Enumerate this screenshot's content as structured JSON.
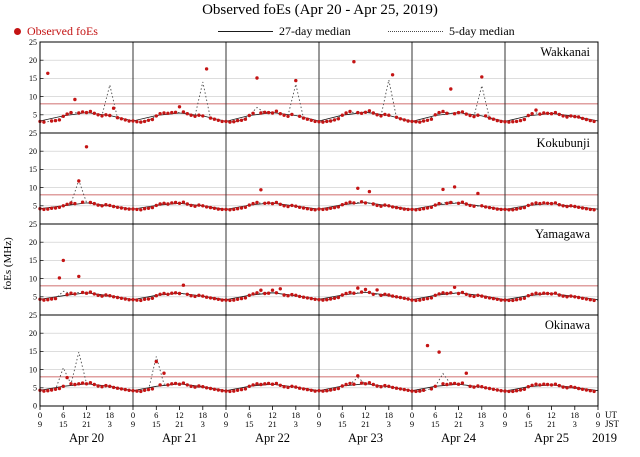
{
  "chart_data": {
    "type": "scatter",
    "title": "Observed foEs (Apr 20 - Apr 25, 2019)",
    "ylabel": "foEs (MHz)",
    "legend": {
      "observed": "Observed foEs",
      "median27": "27-day median",
      "median5": "5-day median"
    },
    "y_max": 25,
    "y_tick_values": [
      25,
      20,
      15,
      10,
      5
    ],
    "y_bottom_label": "0",
    "y_gridlines": [
      5,
      10,
      15,
      20
    ],
    "threshold_mhz": 8,
    "hours_total": 144,
    "tick_step_hours": 6,
    "scatter_step_hours": 1,
    "median5_step_hours": 2,
    "median27_step_hours": 6,
    "colors": {
      "observed": "#c41414",
      "median27": "#1a1a1a",
      "median5": "#4a4a4a",
      "threshold": "#c04040",
      "grid": "#c9c9c9",
      "frame": "#000000",
      "dayline": "#333333"
    },
    "x_axis": {
      "ut_cycle": [
        "0",
        "6",
        "12",
        "18"
      ],
      "jst_cycle": [
        "9",
        "15",
        "21",
        "3"
      ],
      "ut_unit": "UT",
      "jst_unit": "JST",
      "day_labels": [
        "Apr 20",
        "Apr 21",
        "Apr 22",
        "Apr 23",
        "Apr 24",
        "Apr 25"
      ],
      "year": "2019"
    },
    "stations": [
      {
        "name": "Wakkanai",
        "scatter": [
          3.2,
          3.0,
          16.4,
          3.3,
          3.4,
          3.6,
          4.6,
          5.2,
          5.6,
          9.2,
          5.5,
          5.8,
          5.6,
          5.9,
          5.4,
          5.0,
          4.7,
          5.0,
          4.8,
          6.8,
          4.2,
          3.9,
          3.6,
          3.3,
          3.3,
          3.1,
          3.0,
          3.2,
          3.5,
          3.7,
          4.7,
          5.3,
          5.5,
          5.4,
          5.6,
          5.7,
          7.2,
          5.8,
          5.3,
          4.9,
          4.6,
          4.9,
          4.7,
          17.6,
          4.1,
          3.8,
          3.5,
          3.2,
          3.2,
          3.0,
          3.1,
          3.4,
          3.5,
          3.8,
          4.8,
          5.4,
          15.1,
          5.5,
          5.7,
          5.6,
          5.5,
          6.0,
          5.3,
          4.9,
          4.6,
          5.1,
          14.4,
          4.6,
          4.1,
          3.8,
          3.5,
          3.2,
          3.1,
          3.0,
          3.2,
          3.3,
          3.6,
          3.9,
          4.9,
          5.5,
          5.9,
          19.6,
          5.6,
          5.4,
          5.7,
          6.1,
          5.5,
          5.0,
          4.7,
          5.1,
          4.9,
          16.0,
          4.3,
          3.9,
          3.6,
          3.3,
          3.2,
          3.1,
          3.0,
          3.3,
          3.5,
          3.8,
          5.0,
          5.6,
          5.9,
          5.4,
          12.1,
          5.3,
          5.6,
          5.8,
          5.2,
          4.8,
          4.5,
          4.9,
          15.4,
          4.7,
          4.1,
          3.8,
          3.4,
          3.2,
          3.1,
          3.0,
          3.1,
          3.2,
          3.4,
          3.7,
          4.8,
          5.3,
          6.3,
          5.2,
          5.5,
          5.4,
          5.3,
          5.6,
          5.1,
          4.7,
          4.4,
          4.7,
          4.5,
          4.4,
          4.0,
          3.7,
          3.4,
          3.2
        ],
        "median5": [
          3.2,
          3.1,
          3.4,
          4.6,
          5.5,
          5.6,
          5.7,
          5.5,
          4.8,
          13.2,
          4.1,
          3.6,
          3.2,
          3.0,
          3.5,
          4.7,
          5.4,
          5.7,
          5.6,
          5.4,
          4.7,
          14.0,
          4.0,
          3.5,
          3.1,
          3.1,
          3.5,
          4.8,
          7.0,
          5.6,
          5.7,
          5.3,
          4.8,
          13.4,
          4.1,
          3.6,
          3.1,
          3.2,
          3.6,
          4.9,
          5.8,
          5.5,
          5.8,
          5.4,
          4.7,
          14.6,
          4.2,
          3.6,
          3.2,
          3.1,
          3.5,
          5.0,
          5.7,
          5.4,
          5.6,
          5.2,
          4.6,
          13.0,
          4.0,
          3.5,
          3.1,
          3.0,
          3.4,
          4.8,
          5.5,
          5.3,
          5.4,
          5.0,
          4.5,
          4.6,
          3.9,
          3.4,
          3.2
        ],
        "median27": [
          3.3,
          4.7,
          5.6,
          4.8,
          3.3,
          4.8,
          5.5,
          4.7,
          3.2,
          4.8,
          5.6,
          4.8,
          3.3,
          4.9,
          5.7,
          4.8,
          3.2,
          4.8,
          5.6,
          4.7,
          3.2,
          4.7,
          5.4,
          4.6,
          3.3
        ]
      },
      {
        "name": "Kokubunji",
        "scatter": [
          4.2,
          4.0,
          4.1,
          4.3,
          4.4,
          4.6,
          5.0,
          5.4,
          5.8,
          5.6,
          11.8,
          6.0,
          21.2,
          5.9,
          5.6,
          5.2,
          5.0,
          5.3,
          5.1,
          4.8,
          4.6,
          4.4,
          4.2,
          4.1,
          4.1,
          4.0,
          3.9,
          4.2,
          4.3,
          4.5,
          5.1,
          5.5,
          5.7,
          5.5,
          5.8,
          5.9,
          5.7,
          6.0,
          5.5,
          5.1,
          4.9,
          5.2,
          5.0,
          4.7,
          4.5,
          4.3,
          4.1,
          4.0,
          4.0,
          3.9,
          4.0,
          4.2,
          4.4,
          4.6,
          5.2,
          5.6,
          5.9,
          9.4,
          5.7,
          5.8,
          5.6,
          5.9,
          5.4,
          5.0,
          4.8,
          5.1,
          4.9,
          4.6,
          4.4,
          4.2,
          4.0,
          3.9,
          4.1,
          4.0,
          4.1,
          4.3,
          4.5,
          4.7,
          5.3,
          5.7,
          6.0,
          5.8,
          9.8,
          6.1,
          5.8,
          8.9,
          5.5,
          5.1,
          4.9,
          5.2,
          5.0,
          4.7,
          4.5,
          4.3,
          4.1,
          4.0,
          4.0,
          3.9,
          4.0,
          4.2,
          4.4,
          4.6,
          5.2,
          5.6,
          9.5,
          5.7,
          5.9,
          10.2,
          5.7,
          6.0,
          5.5,
          5.1,
          4.9,
          8.4,
          5.0,
          4.7,
          4.5,
          4.3,
          4.1,
          4.0,
          4.0,
          3.9,
          3.9,
          4.1,
          4.3,
          4.5,
          5.1,
          5.5,
          5.8,
          5.6,
          5.8,
          5.7,
          5.6,
          5.8,
          5.3,
          5.0,
          4.8,
          5.0,
          4.8,
          4.6,
          4.4,
          4.2,
          4.0,
          3.9
        ],
        "median5": [
          4.1,
          4.0,
          4.4,
          5.0,
          5.7,
          12.0,
          5.9,
          5.6,
          5.0,
          5.0,
          4.6,
          4.2,
          4.1,
          4.0,
          4.3,
          5.1,
          5.7,
          5.7,
          5.8,
          5.5,
          4.9,
          5.0,
          4.5,
          4.1,
          4.0,
          4.0,
          4.4,
          5.2,
          5.8,
          5.7,
          5.7,
          5.4,
          4.9,
          4.9,
          4.4,
          4.1,
          4.1,
          4.1,
          4.5,
          5.3,
          5.9,
          5.9,
          5.8,
          5.5,
          5.0,
          5.0,
          4.5,
          4.1,
          4.0,
          4.0,
          4.4,
          5.2,
          5.8,
          6.1,
          5.7,
          5.5,
          4.9,
          4.9,
          4.4,
          4.1,
          4.0,
          3.9,
          4.3,
          5.1,
          5.6,
          5.7,
          5.6,
          5.3,
          4.8,
          4.8,
          4.4,
          4.0,
          4.0
        ],
        "median27": [
          4.2,
          5.0,
          5.8,
          5.0,
          4.1,
          5.1,
          5.7,
          5.0,
          4.0,
          5.2,
          5.8,
          4.9,
          4.1,
          5.3,
          5.9,
          5.0,
          4.0,
          5.2,
          5.8,
          4.9,
          4.0,
          5.1,
          5.6,
          4.8,
          4.1
        ]
      },
      {
        "name": "Yamagawa",
        "scatter": [
          4.3,
          4.1,
          4.2,
          4.4,
          4.5,
          10.2,
          15.0,
          5.6,
          6.0,
          5.8,
          10.6,
          6.2,
          6.0,
          6.3,
          5.8,
          5.4,
          5.2,
          5.5,
          5.3,
          5.0,
          4.8,
          4.6,
          4.4,
          4.2,
          4.2,
          4.1,
          4.0,
          4.3,
          4.4,
          4.6,
          5.3,
          5.7,
          5.9,
          5.7,
          6.0,
          6.1,
          5.9,
          8.2,
          5.7,
          5.3,
          5.1,
          5.4,
          5.2,
          4.9,
          4.7,
          4.5,
          4.3,
          4.1,
          4.1,
          4.0,
          4.1,
          4.3,
          4.5,
          4.7,
          5.4,
          5.8,
          6.1,
          6.8,
          5.9,
          6.0,
          6.8,
          6.1,
          7.2,
          5.5,
          5.3,
          5.6,
          5.4,
          5.1,
          4.9,
          4.7,
          4.5,
          4.3,
          4.2,
          4.1,
          4.2,
          4.4,
          4.6,
          4.8,
          5.5,
          5.9,
          6.2,
          6.0,
          7.4,
          6.3,
          7.0,
          6.2,
          5.7,
          6.9,
          5.4,
          5.7,
          5.5,
          5.2,
          5.0,
          4.8,
          4.6,
          4.4,
          4.1,
          4.0,
          4.1,
          4.3,
          4.5,
          4.7,
          5.4,
          5.8,
          6.1,
          5.9,
          6.1,
          7.6,
          5.9,
          6.2,
          5.7,
          5.3,
          5.1,
          5.4,
          5.2,
          4.9,
          4.7,
          4.5,
          4.3,
          4.1,
          4.1,
          4.0,
          4.0,
          4.2,
          4.4,
          4.6,
          5.3,
          5.7,
          6.0,
          5.8,
          6.0,
          5.9,
          5.8,
          6.0,
          5.5,
          5.2,
          5.0,
          5.2,
          5.0,
          4.8,
          4.6,
          4.4,
          4.2,
          4.0
        ],
        "median5": [
          4.2,
          4.1,
          4.5,
          6.5,
          5.9,
          6.2,
          6.1,
          5.8,
          5.2,
          5.2,
          4.8,
          4.4,
          4.2,
          4.1,
          4.4,
          5.3,
          5.8,
          5.9,
          6.0,
          5.7,
          5.1,
          5.1,
          4.7,
          4.3,
          4.1,
          4.1,
          4.5,
          5.4,
          6.0,
          6.0,
          6.2,
          5.9,
          5.3,
          5.2,
          4.8,
          4.4,
          4.2,
          4.2,
          4.6,
          5.5,
          6.1,
          6.1,
          6.3,
          5.8,
          5.4,
          5.3,
          4.9,
          4.5,
          4.1,
          4.1,
          4.5,
          5.4,
          6.0,
          6.0,
          6.1,
          5.7,
          5.2,
          5.2,
          4.8,
          4.4,
          4.1,
          4.0,
          4.4,
          5.3,
          5.8,
          5.9,
          5.9,
          5.6,
          5.1,
          5.0,
          4.7,
          4.3,
          4.1
        ],
        "median27": [
          4.3,
          5.3,
          6.1,
          5.3,
          4.2,
          5.4,
          6.0,
          5.2,
          4.2,
          5.4,
          6.1,
          5.3,
          4.3,
          5.5,
          6.2,
          5.4,
          4.2,
          5.4,
          6.1,
          5.3,
          4.2,
          5.3,
          5.9,
          5.1,
          4.2
        ]
      },
      {
        "name": "Okinawa",
        "scatter": [
          4.3,
          4.1,
          4.2,
          4.4,
          4.6,
          4.8,
          5.4,
          7.8,
          6.1,
          5.9,
          6.1,
          6.3,
          6.1,
          6.4,
          5.9,
          5.5,
          5.3,
          5.6,
          5.4,
          5.1,
          4.9,
          4.7,
          4.5,
          4.3,
          4.2,
          4.1,
          4.0,
          4.3,
          4.5,
          4.7,
          12.2,
          5.8,
          9.0,
          5.8,
          6.1,
          6.2,
          6.0,
          6.3,
          5.8,
          5.4,
          5.2,
          5.5,
          5.3,
          5.0,
          4.8,
          4.6,
          4.4,
          4.2,
          4.1,
          4.0,
          4.1,
          4.3,
          4.5,
          4.7,
          5.4,
          5.8,
          6.1,
          5.9,
          6.1,
          6.2,
          6.0,
          6.2,
          5.7,
          5.3,
          5.1,
          5.4,
          5.2,
          4.9,
          4.7,
          4.5,
          4.3,
          4.1,
          4.2,
          4.1,
          4.2,
          4.4,
          4.6,
          4.8,
          5.5,
          5.9,
          6.2,
          6.0,
          8.3,
          6.3,
          6.1,
          6.4,
          5.9,
          5.5,
          5.3,
          5.6,
          5.4,
          5.1,
          4.9,
          4.7,
          4.5,
          4.3,
          4.1,
          4.0,
          4.1,
          4.3,
          16.6,
          4.7,
          5.4,
          14.8,
          6.1,
          5.9,
          6.1,
          6.2,
          6.0,
          6.3,
          9.0,
          5.4,
          5.2,
          5.5,
          5.3,
          5.0,
          4.8,
          4.6,
          4.4,
          4.2,
          4.1,
          4.0,
          4.0,
          4.2,
          4.4,
          4.6,
          5.3,
          5.7,
          6.0,
          5.8,
          6.0,
          5.9,
          5.8,
          6.0,
          5.6,
          5.2,
          5.0,
          5.3,
          5.1,
          4.8,
          4.6,
          4.4,
          4.2,
          4.0
        ],
        "median5": [
          4.2,
          4.1,
          4.5,
          10.5,
          6.0,
          14.8,
          6.2,
          5.9,
          5.3,
          5.2,
          4.9,
          4.5,
          4.2,
          4.1,
          4.4,
          13.6,
          6.0,
          6.1,
          6.1,
          5.8,
          5.2,
          5.2,
          4.8,
          4.4,
          4.1,
          4.0,
          4.4,
          5.4,
          5.9,
          6.0,
          6.0,
          5.7,
          5.1,
          5.1,
          4.7,
          4.3,
          4.2,
          4.1,
          4.5,
          5.5,
          6.0,
          7.8,
          6.1,
          5.8,
          5.2,
          5.2,
          4.8,
          4.4,
          4.1,
          4.1,
          4.4,
          5.4,
          8.9,
          6.0,
          6.0,
          5.7,
          5.1,
          5.1,
          4.7,
          4.3,
          4.1,
          4.0,
          4.3,
          5.3,
          5.8,
          5.9,
          5.8,
          5.5,
          5.0,
          4.9,
          4.6,
          4.2,
          4.1
        ],
        "median27": [
          4.3,
          5.4,
          6.1,
          5.4,
          4.2,
          5.4,
          6.1,
          5.3,
          4.2,
          5.4,
          6.0,
          5.2,
          4.2,
          5.5,
          6.1,
          5.3,
          4.2,
          5.4,
          6.0,
          5.2,
          4.1,
          5.3,
          5.8,
          5.1,
          4.2
        ]
      }
    ]
  }
}
